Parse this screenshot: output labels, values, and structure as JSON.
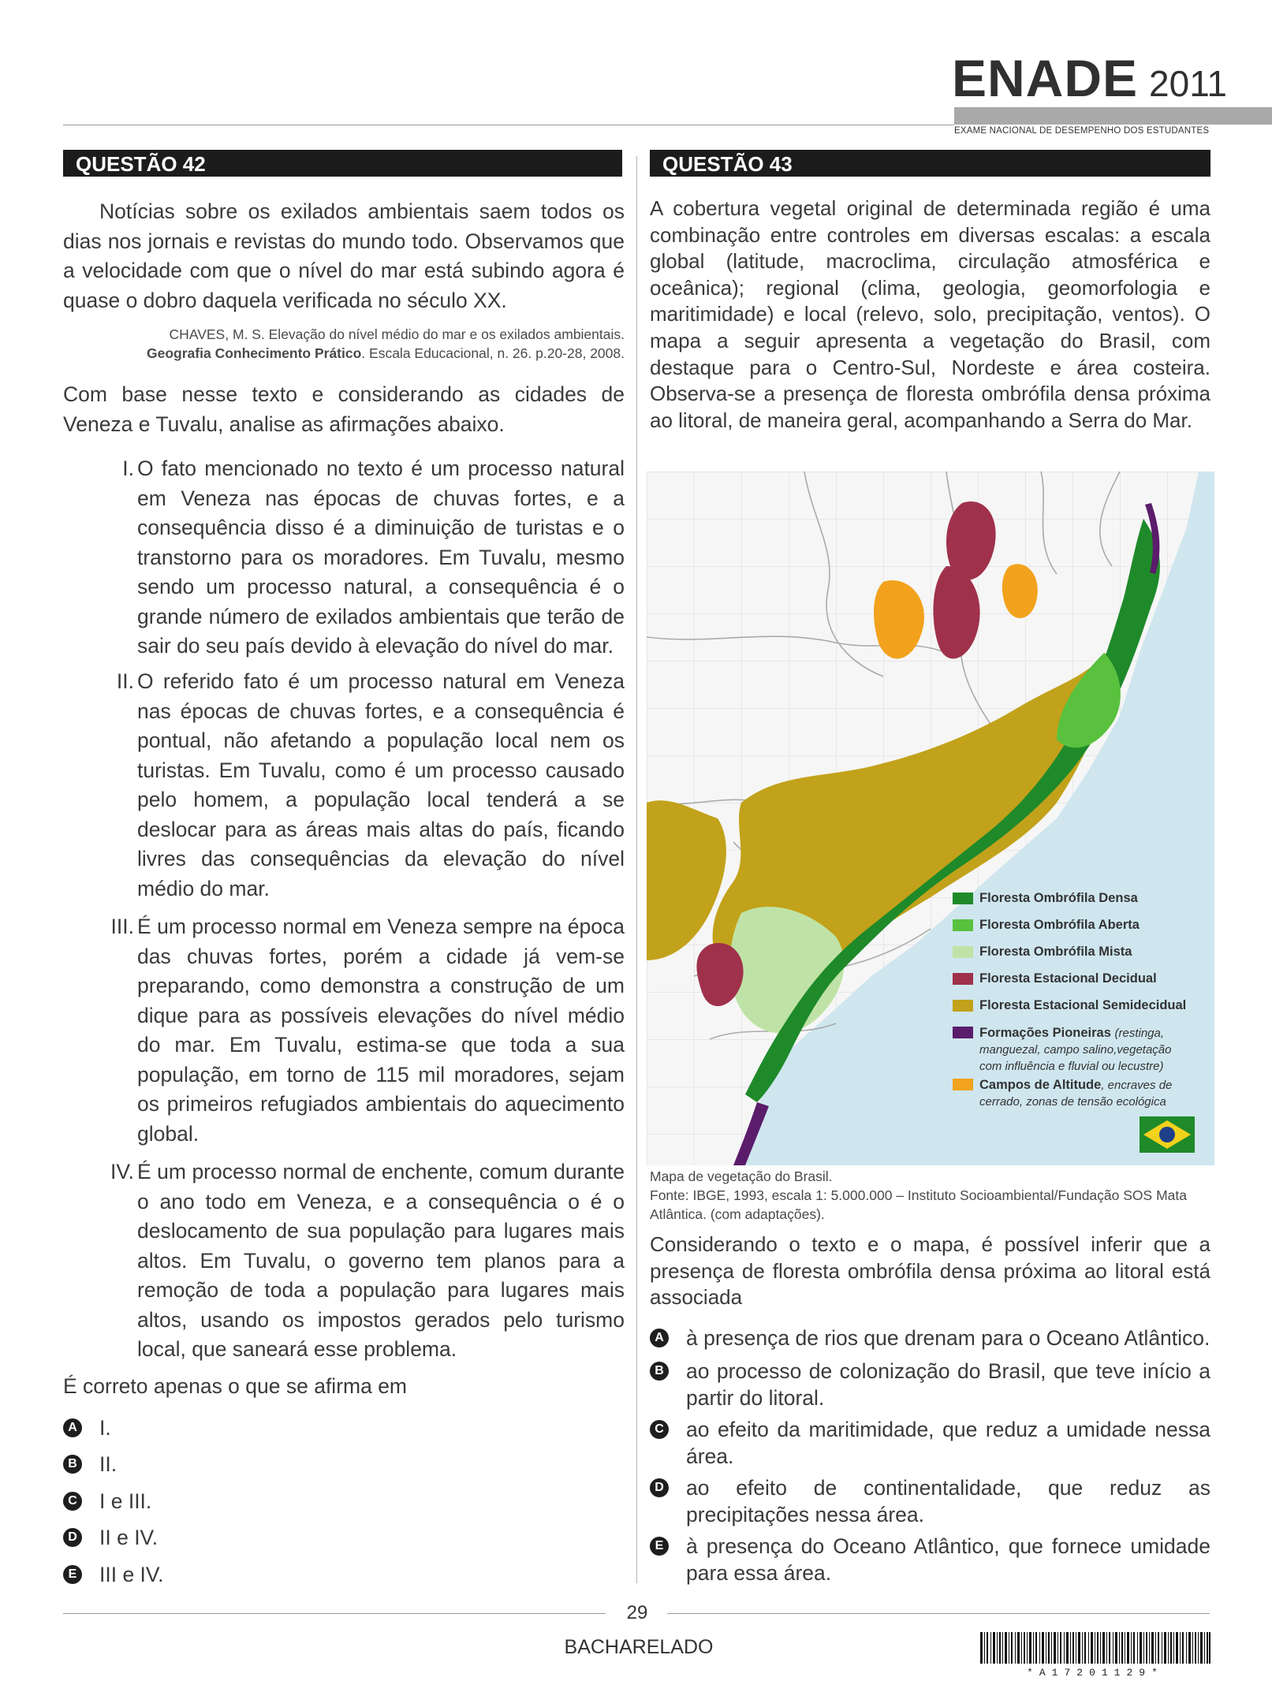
{
  "header": {
    "brand": "ENADE",
    "year": "2011",
    "subtitle": "EXAME NACIONAL DE DESEMPENHO DOS ESTUDANTES"
  },
  "q42": {
    "title": "QUESTÃO 42",
    "intro": "Notícias sobre os exilados ambientais saem todos os dias nos jornais e revistas do mundo todo. Observamos que a velocidade com que o nível do mar está subindo agora é quase o dobro daquela verificada no século XX.",
    "citation_line1": "CHAVES, M. S. Elevação do nível médio do mar e os exilados ambientais.",
    "citation_bold": "Geografia Conhecimento Prático",
    "citation_rest": ". Escala Educacional, n. 26. p.20-28, 2008.",
    "prompt": "Com base nesse texto e considerando as cidades de Veneza e Tuvalu, analise as afirmações abaixo.",
    "statements": [
      {
        "num": "I.",
        "text": "O fato mencionado no texto é um processo natural em Veneza nas épocas de chuvas fortes, e a consequência disso é a diminuição de turistas e o transtorno para os moradores. Em Tuvalu, mesmo sendo um processo natural, a consequência é o grande número de exilados ambientais que terão de sair do seu país devido à elevação do nível do mar."
      },
      {
        "num": "II.",
        "text": "O referido fato é um processo natural em Veneza nas épocas de chuvas fortes, e a consequência  é pontual, não afetando a população local nem  os turistas. Em Tuvalu, como é um processo causado pelo homem, a população local tenderá a se deslocar para as áreas mais altas do país, ficando livres das consequências da elevação do nível médio do mar."
      },
      {
        "num": "III.",
        "text": "É um processo normal em Veneza sempre na época das chuvas fortes, porém a cidade já vem-se preparando, como demonstra a construção de um dique para as possíveis elevações do nível médio do mar. Em Tuvalu, estima-se que toda a sua população, em torno de 115 mil moradores, sejam os primeiros refugiados ambientais do aquecimento global."
      },
      {
        "num": "IV.",
        "text": "É um processo normal de enchente, comum durante o ano todo em Veneza, e a consequência o é o deslocamento de sua população para lugares mais altos. Em Tuvalu, o governo tem planos para a remoção de toda a população para lugares mais altos, usando os impostos gerados pelo turismo local, que saneará esse problema."
      }
    ],
    "question": "É correto apenas o que se afirma em",
    "options": [
      {
        "letter": "A",
        "text": "I."
      },
      {
        "letter": "B",
        "text": "II."
      },
      {
        "letter": "C",
        "text": "I e III."
      },
      {
        "letter": "D",
        "text": "II e IV."
      },
      {
        "letter": "E",
        "text": "III e IV."
      }
    ]
  },
  "q43": {
    "title": "QUESTÃO 43",
    "intro": "A cobertura vegetal original de determinada região é uma combinação entre controles em diversas escalas: a escala global (latitude, macroclima, circulação atmosférica e oceânica); regional (clima, geologia, geomorfologia e maritimidade) e local (relevo, solo, precipitação, ventos). O mapa a seguir apresenta a vegetação do Brasil, com destaque para o Centro-Sul, Nordeste e área costeira. Observa-se a presença de floresta ombrófila densa próxima ao litoral, de maneira geral, acompanhando a Serra do Mar.",
    "map_legend": [
      {
        "label": "Floresta Ombrófila Densa",
        "color": "#1f8a2a"
      },
      {
        "label": "Floresta Ombrófila Aberta",
        "color": "#59c13e"
      },
      {
        "label": "Floresta Ombrófila Mista",
        "color": "#bfe3a6"
      },
      {
        "label": "Floresta Estacional Decidual",
        "color": "#a0314b"
      },
      {
        "label": "Floresta Estacional Semidecidual",
        "color": "#c2a21a"
      },
      {
        "label": "Formações Pioneiras",
        "sub": "(restinga, manguezal, campo salino,vegetação com influência e fluvial ou lecustre)",
        "color": "#5a1c6b"
      },
      {
        "label": "Campos de Altitude",
        "sub": ", encraves de cerrado, zonas de tensão ecológica",
        "color": "#f2a21c"
      }
    ],
    "map_caption": "Mapa de vegetação do Brasil.",
    "map_source": "Fonte: IBGE, 1993, escala 1: 5.000.000 – Instituto Socioambiental/Fundação SOS Mata Atlântica. (com adaptações).",
    "question": "Considerando o texto e o mapa, é possível inferir que a presença de floresta ombrófila densa próxima ao litoral está associada",
    "options": [
      {
        "letter": "A",
        "text": "à presença de rios que drenam para o Oceano Atlântico."
      },
      {
        "letter": "B",
        "text": "ao processo de colonização do Brasil, que teve início a partir do litoral."
      },
      {
        "letter": "C",
        "text": "ao efeito da maritimidade, que reduz a umidade nessa área."
      },
      {
        "letter": "D",
        "text": "ao efeito de continentalidade, que reduz as precipitações nessa área."
      },
      {
        "letter": "E",
        "text": "à presença do Oceano Atlântico, que fornece umidade para essa área."
      }
    ]
  },
  "footer": {
    "page": "29",
    "course": "BACHARELADO",
    "barcode_text": "*A17201129*"
  }
}
